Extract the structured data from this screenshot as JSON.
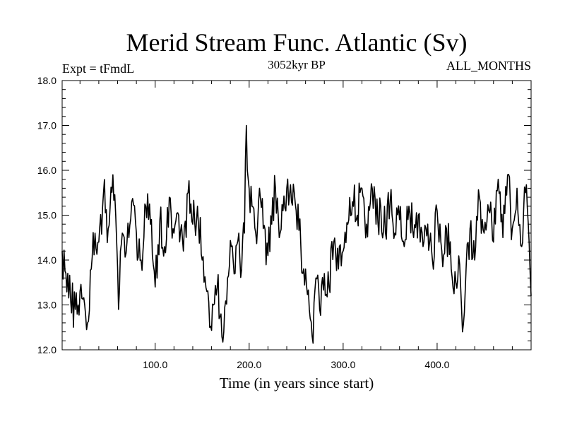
{
  "chart_data": {
    "type": "line",
    "title": "Merid Stream Func. Atlantic (Sv)",
    "subtitle_left": "Expt = tFmdL",
    "subtitle_center": "3052kyr BP",
    "subtitle_right": "ALL_MONTHS",
    "xlabel": "Time (in years since start)",
    "ylabel": "",
    "xlim": [
      1,
      500
    ],
    "ylim": [
      12.0,
      18.0
    ],
    "x_ticks": [
      100,
      200,
      300,
      400
    ],
    "x_tick_labels": [
      "100.0",
      "200.0",
      "300.0",
      "400.0"
    ],
    "y_ticks": [
      12,
      13,
      14,
      15,
      16,
      17,
      18
    ],
    "y_tick_labels": [
      "12.0",
      "13.0",
      "14.0",
      "15.0",
      "16.0",
      "17.0",
      "18.0"
    ],
    "series": [
      {
        "name": "Merid Stream Func. Atlantic",
        "x_start": 1,
        "x_step": 1,
        "anchors": [
          [
            1,
            14.2
          ],
          [
            5,
            13.7
          ],
          [
            10,
            13.1
          ],
          [
            15,
            12.9
          ],
          [
            20,
            13.3
          ],
          [
            25,
            13.0
          ],
          [
            28,
            12.6
          ],
          [
            32,
            13.8
          ],
          [
            36,
            14.6
          ],
          [
            40,
            14.4
          ],
          [
            45,
            15.5
          ],
          [
            50,
            14.7
          ],
          [
            55,
            15.9
          ],
          [
            58,
            15.0
          ],
          [
            61,
            12.9
          ],
          [
            65,
            14.6
          ],
          [
            70,
            14.4
          ],
          [
            75,
            15.3
          ],
          [
            80,
            14.6
          ],
          [
            85,
            14.0
          ],
          [
            90,
            15.2
          ],
          [
            95,
            14.8
          ],
          [
            100,
            13.4
          ],
          [
            105,
            14.9
          ],
          [
            110,
            14.3
          ],
          [
            115,
            15.4
          ],
          [
            120,
            14.6
          ],
          [
            125,
            15.0
          ],
          [
            130,
            14.2
          ],
          [
            135,
            15.5
          ],
          [
            140,
            14.8
          ],
          [
            145,
            15.2
          ],
          [
            150,
            14.0
          ],
          [
            155,
            13.3
          ],
          [
            158,
            12.5
          ],
          [
            162,
            13.0
          ],
          [
            166,
            13.4
          ],
          [
            170,
            12.8
          ],
          [
            173,
            12.4
          ],
          [
            177,
            13.6
          ],
          [
            181,
            14.3
          ],
          [
            185,
            13.7
          ],
          [
            189,
            14.6
          ],
          [
            192,
            13.8
          ],
          [
            195,
            14.6
          ],
          [
            197,
            17.0
          ],
          [
            199,
            15.8
          ],
          [
            203,
            15.2
          ],
          [
            207,
            14.6
          ],
          [
            211,
            15.6
          ],
          [
            215,
            14.7
          ],
          [
            220,
            14.1
          ],
          [
            224,
            14.8
          ],
          [
            228,
            15.6
          ],
          [
            232,
            14.5
          ],
          [
            236,
            15.1
          ],
          [
            240,
            15.6
          ],
          [
            245,
            15.3
          ],
          [
            250,
            15.1
          ],
          [
            255,
            14.3
          ],
          [
            260,
            13.8
          ],
          [
            264,
            12.9
          ],
          [
            267,
            12.3
          ],
          [
            271,
            13.6
          ],
          [
            275,
            12.9
          ],
          [
            280,
            13.7
          ],
          [
            285,
            13.4
          ],
          [
            290,
            14.4
          ],
          [
            295,
            13.8
          ],
          [
            300,
            14.2
          ],
          [
            305,
            14.8
          ],
          [
            310,
            15.3
          ],
          [
            315,
            15.0
          ],
          [
            320,
            15.6
          ],
          [
            325,
            14.8
          ],
          [
            330,
            15.7
          ],
          [
            335,
            14.8
          ],
          [
            340,
            15.2
          ],
          [
            345,
            14.6
          ],
          [
            350,
            15.3
          ],
          [
            355,
            14.6
          ],
          [
            360,
            14.9
          ],
          [
            365,
            14.3
          ],
          [
            370,
            15.2
          ],
          [
            375,
            14.5
          ],
          [
            380,
            15.0
          ],
          [
            385,
            14.3
          ],
          [
            390,
            14.8
          ],
          [
            395,
            14.0
          ],
          [
            400,
            15.1
          ],
          [
            405,
            14.2
          ],
          [
            410,
            14.7
          ],
          [
            415,
            13.8
          ],
          [
            420,
            13.5
          ],
          [
            424,
            13.9
          ],
          [
            427,
            12.4
          ],
          [
            431,
            13.9
          ],
          [
            435,
            14.7
          ],
          [
            440,
            14.0
          ],
          [
            445,
            15.4
          ],
          [
            450,
            14.6
          ],
          [
            455,
            15.1
          ],
          [
            460,
            14.4
          ],
          [
            465,
            15.8
          ],
          [
            470,
            14.5
          ],
          [
            475,
            15.9
          ],
          [
            480,
            14.7
          ],
          [
            485,
            15.6
          ],
          [
            490,
            14.3
          ],
          [
            494,
            15.5
          ],
          [
            497,
            14.8
          ],
          [
            500,
            13.2
          ]
        ]
      }
    ]
  }
}
